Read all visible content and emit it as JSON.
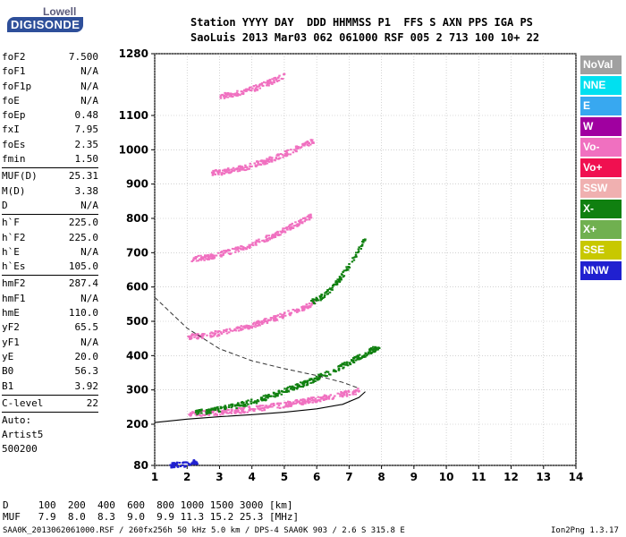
{
  "logo": {
    "top": "Lowell",
    "main": "DIGISONDE"
  },
  "header": {
    "labels": "Station YYYY DAY  DDD HHMMSS P1  FFS S AXN PPS IGA PS",
    "values": "SaoLuis 2013 Mar03 062 061000 RSF 005 2 713 100 10+ 22"
  },
  "params_group1": [
    {
      "name": "foF2",
      "value": "7.500"
    },
    {
      "name": "foF1",
      "value": "N/A"
    },
    {
      "name": "foF1p",
      "value": "N/A"
    },
    {
      "name": "foE",
      "value": "N/A"
    },
    {
      "name": "foEp",
      "value": "0.48"
    },
    {
      "name": "fxI",
      "value": "7.95"
    },
    {
      "name": "foEs",
      "value": "2.35"
    },
    {
      "name": "fmin",
      "value": "1.50"
    }
  ],
  "params_group2": [
    {
      "name": "MUF(D)",
      "value": "25.31"
    },
    {
      "name": "M(D)",
      "value": "3.38"
    },
    {
      "name": "D",
      "value": "N/A"
    }
  ],
  "params_group3": [
    {
      "name": "h`F",
      "value": "225.0"
    },
    {
      "name": "h`F2",
      "value": "225.0"
    },
    {
      "name": "h`E",
      "value": "N/A"
    },
    {
      "name": "h`Es",
      "value": "105.0"
    }
  ],
  "params_group4": [
    {
      "name": "hmF2",
      "value": "287.4"
    },
    {
      "name": "hmF1",
      "value": "N/A"
    },
    {
      "name": "hmE",
      "value": "110.0"
    },
    {
      "name": "yF2",
      "value": "65.5"
    },
    {
      "name": "yF1",
      "value": "N/A"
    },
    {
      "name": "yE",
      "value": "20.0"
    },
    {
      "name": "B0",
      "value": "56.3"
    },
    {
      "name": "B1",
      "value": "3.92"
    }
  ],
  "params_group5": [
    {
      "name": "C-level",
      "value": "22"
    }
  ],
  "auto": {
    "line1": "Auto:",
    "line2": "Artist5",
    "line3": "500200"
  },
  "legend": [
    {
      "label": "NoVal",
      "color": "#a0a0a0"
    },
    {
      "label": "NNE",
      "color": "#00e0f0"
    },
    {
      "label": "E",
      "color": "#38a8f0"
    },
    {
      "label": "W",
      "color": "#a000a0"
    },
    {
      "label": "Vo-",
      "color": "#f070c0"
    },
    {
      "label": "Vo+",
      "color": "#f01050"
    },
    {
      "label": "SSW",
      "color": "#f0b0b0"
    },
    {
      "label": "X-",
      "color": "#108010"
    },
    {
      "label": "X+",
      "color": "#70b050"
    },
    {
      "label": "SSE",
      "color": "#c8c800"
    },
    {
      "label": "NNW",
      "color": "#2020d0"
    }
  ],
  "footer": {
    "d_row": "D     100  200  400  600  800 1000 1500 3000 [km]",
    "muf_row": "MUF   7.9  8.0  8.3  9.0  9.9 11.3 15.2 25.3 [MHz]",
    "file": "SAA0K_2013062061000.RSF / 260fx256h 50 kHz 5.0 km / DPS-4 SAA0K 903 / 2.6 S 315.8 E",
    "version": "Ion2Png 1.3.17"
  },
  "chart_data": {
    "type": "scatter",
    "xlim": [
      1,
      14
    ],
    "ylim": [
      80,
      1280
    ],
    "x_ticks": [
      1,
      2,
      3,
      4,
      5,
      6,
      7,
      8,
      9,
      10,
      11,
      12,
      13,
      14
    ],
    "y_ticks": [
      80,
      200,
      300,
      400,
      500,
      600,
      700,
      800,
      900,
      1000,
      1100,
      1280
    ],
    "series": [
      {
        "name": "Vo-",
        "color": "#f070c0",
        "trace_bands": [
          {
            "x": [
              2.0,
              7.3
            ],
            "y": [
              233,
              300
            ]
          },
          {
            "x": [
              2.0,
              6.0
            ],
            "y": [
              458,
              560
            ]
          },
          {
            "x": [
              2.1,
              5.8
            ],
            "y": [
              685,
              810
            ]
          },
          {
            "x": [
              2.7,
              5.9
            ],
            "y": [
              935,
              1030
            ]
          },
          {
            "x": [
              3.0,
              5.0
            ],
            "y": [
              1160,
              1220
            ]
          }
        ]
      },
      {
        "name": "X-",
        "color": "#108010",
        "trace_bands": [
          {
            "x": [
              2.2,
              7.9
            ],
            "y": [
              238,
              430
            ]
          },
          {
            "x": [
              5.8,
              7.5
            ],
            "y": [
              560,
              750
            ]
          }
        ]
      },
      {
        "name": "NNW",
        "color": "#2020d0",
        "trace_bands": [
          {
            "x": [
              1.4,
              2.3
            ],
            "y": [
              82,
              92
            ]
          }
        ]
      }
    ],
    "profile_solid": [
      [
        1.0,
        205
      ],
      [
        2.0,
        215
      ],
      [
        3.0,
        222
      ],
      [
        4.0,
        228
      ],
      [
        5.0,
        235
      ],
      [
        6.0,
        245
      ],
      [
        6.8,
        258
      ],
      [
        7.3,
        278
      ],
      [
        7.5,
        295
      ]
    ],
    "profile_dashed": [
      [
        1.0,
        570
      ],
      [
        2.0,
        480
      ],
      [
        3.0,
        420
      ],
      [
        4.0,
        385
      ],
      [
        5.0,
        362
      ],
      [
        6.0,
        342
      ],
      [
        6.8,
        322
      ],
      [
        7.3,
        305
      ]
    ]
  }
}
